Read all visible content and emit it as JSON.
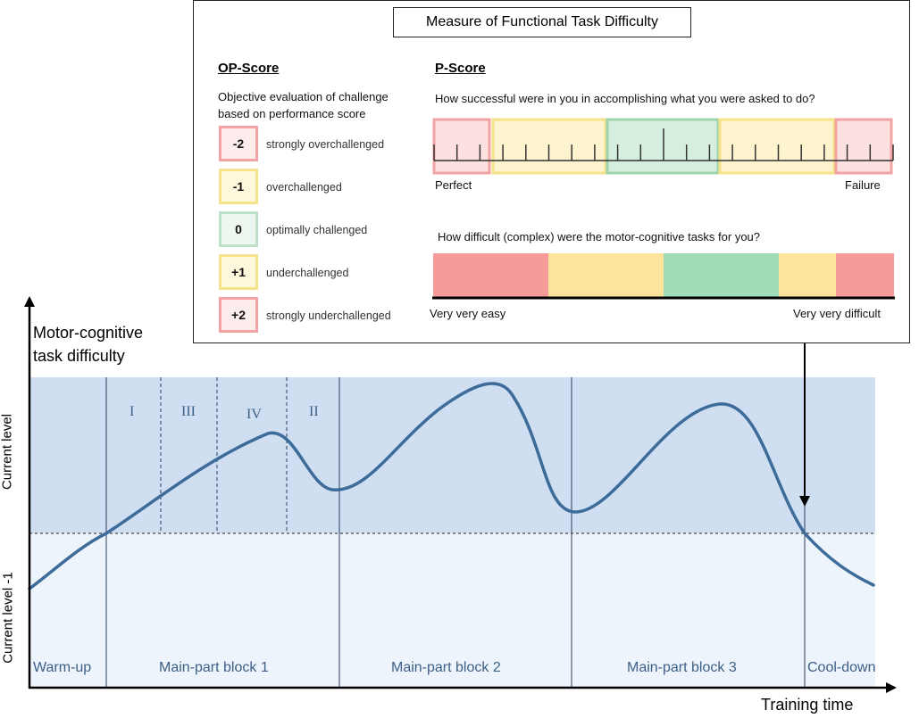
{
  "y_axis": {
    "title_line1": "Motor-cognitive",
    "title_line2": "task difficulty",
    "level_upper": "Current level",
    "level_lower": "Current level -1"
  },
  "x_axis": {
    "title": "Training time"
  },
  "phases": [
    "Warm-up",
    "Main-part block 1",
    "Main-part block 2",
    "Main-part block 3",
    "Cool-down"
  ],
  "sub_stages": [
    "I",
    "III",
    "IV",
    "II"
  ],
  "panel": {
    "title": "Measure of Functional Task Difficulty",
    "op_score": {
      "header": "OP-Score",
      "description_line1": "Objective evaluation of challenge",
      "description_line2": "based on performance score",
      "items": [
        {
          "value": "-2",
          "label": "strongly overchallenged",
          "color": "#f4a3a3",
          "fill": "#fdecec"
        },
        {
          "value": "-1",
          "label": "overchallenged",
          "color": "#f5e38a",
          "fill": "#fdf8dc"
        },
        {
          "value": "0",
          "label": "optimally challenged",
          "color": "#bfe0c8",
          "fill": "#eef6f0"
        },
        {
          "value": "+1",
          "label": "underchallenged",
          "color": "#f5e38a",
          "fill": "#fdf8dc"
        },
        {
          "value": "+2",
          "label": "strongly underchallenged",
          "color": "#f4a3a3",
          "fill": "#fdecec"
        }
      ]
    },
    "p_score": {
      "header": "P-Score",
      "question1": "How successful were in you in accomplishing what you were asked to do?",
      "scale1_left": "Perfect",
      "scale1_right": "Failure",
      "question2": "How difficult (complex) were the motor-cognitive tasks for you?",
      "scale2_left": "Very very  easy",
      "scale2_right": "Very very  difficult"
    }
  },
  "colors": {
    "curve": "#3d6b9a",
    "red": "#f79a9a",
    "yellow": "#fde39b",
    "green": "#9fdcb8"
  }
}
